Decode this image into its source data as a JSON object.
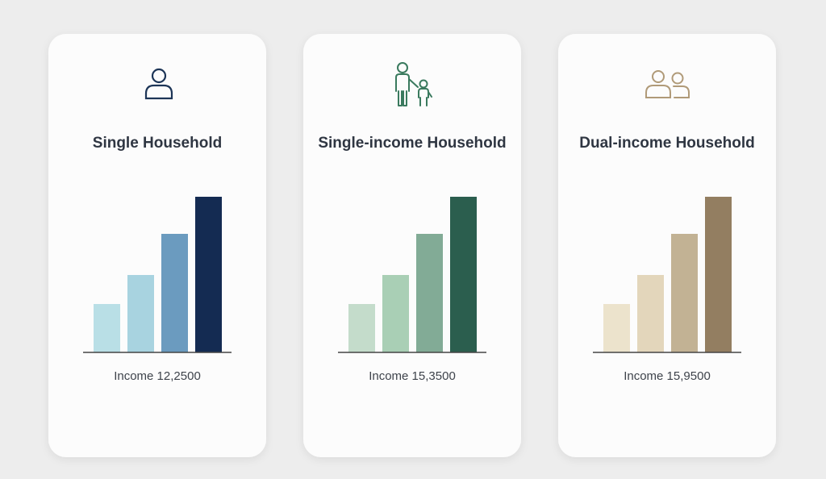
{
  "chart_data": [
    {
      "type": "bar",
      "title": "Single Household",
      "annotation": "Income 12,2500",
      "categories": [
        null,
        null,
        null,
        null
      ],
      "values": [
        60,
        96,
        147,
        193
      ],
      "colors": [
        "#b9dfe6",
        "#a8d3e0",
        "#6b9bbf",
        "#142b52"
      ],
      "ylim": [
        0,
        200
      ]
    },
    {
      "type": "bar",
      "title": "Single-income Household",
      "annotation": "Income 15,3500",
      "categories": [
        null,
        null,
        null,
        null
      ],
      "values": [
        60,
        96,
        147,
        193
      ],
      "colors": [
        "#c4dccb",
        "#a9cfb5",
        "#82ab96",
        "#2b5e4e"
      ],
      "ylim": [
        0,
        200
      ]
    },
    {
      "type": "bar",
      "title": "Dual-income Household",
      "annotation": "Income 15,9500",
      "categories": [
        null,
        null,
        null,
        null
      ],
      "values": [
        60,
        96,
        147,
        193
      ],
      "colors": [
        "#ece3cc",
        "#e3d6bb",
        "#c2b294",
        "#937e61"
      ],
      "ylim": [
        0,
        200
      ]
    }
  ]
}
